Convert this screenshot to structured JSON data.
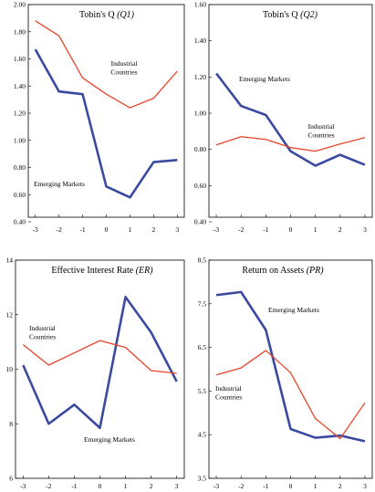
{
  "colors": {
    "emerging": "#3a4aa0",
    "industrial": "#e8442a"
  },
  "chart_data": [
    {
      "id": "q1",
      "type": "line",
      "title_main": "Tobin's Q ",
      "title_italic": "(Q1)",
      "x": [
        -3,
        -2,
        -1,
        0,
        1,
        2,
        3
      ],
      "ylim": [
        0.4,
        2.0
      ],
      "yticks": [
        "0.40",
        "0.60",
        "0.80",
        "1.00",
        "1.20",
        "1.40",
        "1.60",
        "1.80",
        "2.00"
      ],
      "xticks": [
        "-3",
        "-2",
        "-1",
        "0",
        "1",
        "2",
        "3"
      ],
      "series": [
        {
          "key": "emerging",
          "values": [
            1.67,
            1.36,
            1.34,
            0.66,
            0.58,
            0.84,
            0.855
          ]
        },
        {
          "key": "industrial",
          "values": [
            1.88,
            1.77,
            1.46,
            1.34,
            1.24,
            1.31,
            1.51
          ]
        }
      ],
      "annotations": [
        {
          "key": "industrial",
          "lines": [
            "Industrial",
            "Countries"
          ]
        },
        {
          "key": "emerging",
          "lines": [
            "Emerging Markets"
          ]
        }
      ]
    },
    {
      "id": "q2",
      "type": "line",
      "title_main": "Tobin's Q ",
      "title_italic": "(Q2)",
      "x": [
        -3,
        -2,
        -1,
        0,
        1,
        2,
        3
      ],
      "ylim": [
        0.4,
        1.6
      ],
      "yticks": [
        "0.40",
        "0.60",
        "0.80",
        "1.00",
        "1.20",
        "1.40",
        "1.60"
      ],
      "xticks": [
        "-3",
        "-2",
        "-1",
        "0",
        "1",
        "2",
        "3"
      ],
      "series": [
        {
          "key": "emerging",
          "values": [
            1.22,
            1.04,
            0.99,
            0.79,
            0.71,
            0.77,
            0.715
          ]
        },
        {
          "key": "industrial",
          "values": [
            0.825,
            0.87,
            0.855,
            0.81,
            0.79,
            0.83,
            0.865
          ]
        }
      ],
      "annotations": [
        {
          "key": "emerging",
          "lines": [
            "Emerging Markets"
          ]
        },
        {
          "key": "industrial",
          "lines": [
            "Industrial",
            "Countries"
          ]
        }
      ]
    },
    {
      "id": "er",
      "type": "line",
      "title_main": "Effective Interest Rate ",
      "title_italic": "(ER)",
      "x": [
        -3,
        -2,
        -1,
        0,
        1,
        2,
        3
      ],
      "ylim": [
        6,
        14
      ],
      "yticks": [
        "6",
        "8",
        "10",
        "12",
        "14"
      ],
      "xticks": [
        "-3",
        "-2",
        "-1",
        "0",
        "1",
        "2",
        "3"
      ],
      "series": [
        {
          "key": "emerging",
          "values": [
            10.15,
            8.0,
            8.7,
            7.85,
            12.65,
            11.35,
            9.55
          ]
        },
        {
          "key": "industrial",
          "values": [
            10.9,
            10.15,
            10.6,
            11.05,
            10.8,
            9.95,
            9.85
          ]
        }
      ],
      "annotations": [
        {
          "key": "industrial",
          "lines": [
            "Industrial",
            "Countries"
          ]
        },
        {
          "key": "emerging",
          "lines": [
            "Emerging Markets"
          ]
        }
      ]
    },
    {
      "id": "pr",
      "type": "line",
      "title_main": "Return on Assets ",
      "title_italic": "(PR)",
      "x": [
        -3,
        -2,
        -1,
        0,
        1,
        2,
        3
      ],
      "ylim": [
        3.5,
        8.5
      ],
      "yticks": [
        "3.5",
        "4.5",
        "5.5",
        "6.5",
        "7.5",
        "8.5"
      ],
      "xticks": [
        "-3",
        "-2",
        "-1",
        "0",
        "1",
        "2",
        "3"
      ],
      "series": [
        {
          "key": "emerging",
          "values": [
            7.7,
            7.77,
            6.9,
            4.63,
            4.43,
            4.48,
            4.35
          ]
        },
        {
          "key": "industrial",
          "values": [
            5.87,
            6.03,
            6.43,
            5.92,
            4.87,
            4.41,
            5.23
          ]
        }
      ],
      "annotations": [
        {
          "key": "emerging",
          "lines": [
            "Emerging Markets"
          ]
        },
        {
          "key": "industrial",
          "lines": [
            "Industrial",
            "Countries"
          ]
        }
      ]
    }
  ]
}
